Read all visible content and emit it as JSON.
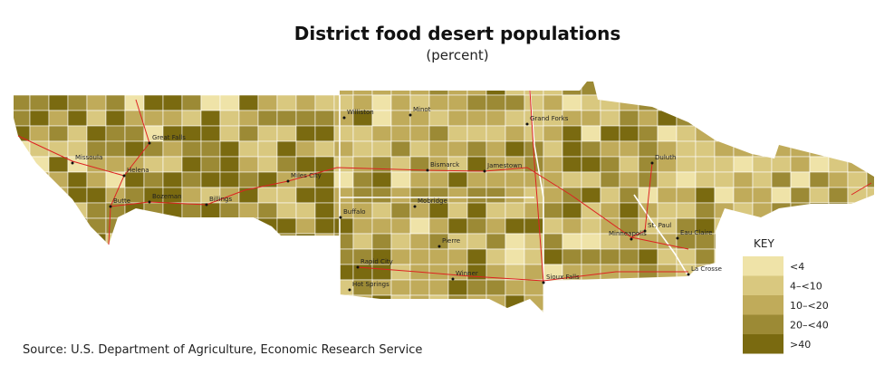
{
  "title": "District food desert populations",
  "subtitle": "(percent)",
  "cities": [
    "Great Falls",
    "Missoula",
    "Helena",
    "Butte",
    "Bozeman",
    "Billings",
    "Miles City",
    "Williston",
    "Minot",
    "Grand Forks",
    "Bismarck",
    "Jamestown",
    "Buffalo",
    "Mobridge",
    "Pierre",
    "Rapid City",
    "Hot Springs",
    "Winner",
    "Sioux Falls",
    "Duluth",
    "St. Paul",
    "Minneapolis",
    "Eau Claire",
    "La Crosse"
  ],
  "key": {
    "title": "KEY",
    "classes": [
      {
        "label": "<4",
        "color": "#efe3a8"
      },
      {
        "label": "4–<10",
        "color": "#d9c87f"
      },
      {
        "label": "10–<20",
        "color": "#c0ab5a"
      },
      {
        "label": "20–<40",
        "color": "#9c8a35"
      },
      {
        "label": ">40",
        "color": "#7a6a10"
      }
    ]
  },
  "source": "Source: U.S. Department of Agriculture, Economic Research Service"
}
